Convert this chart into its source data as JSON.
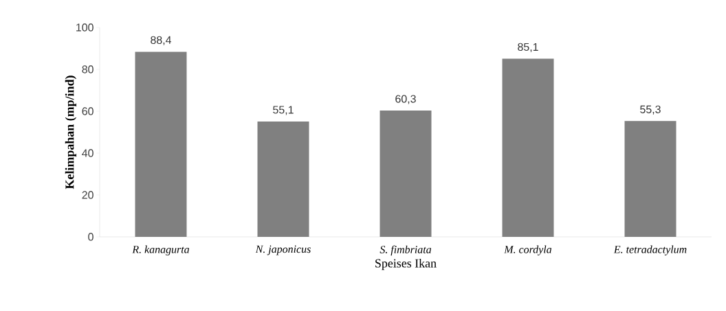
{
  "chart_data": {
    "type": "bar",
    "xlabel": "Speises Ikan",
    "ylabel": "Kelimpahan (mp/ind)",
    "categories": [
      "R. kanagurta",
      "N. japonicus",
      "S. fimbriata",
      "M. cordyla",
      "E. tetradactylum"
    ],
    "values": [
      88.4,
      55.1,
      60.3,
      85.1,
      55.3
    ],
    "value_labels": [
      "88,4",
      "55,1",
      "60,3",
      "85,1",
      "55,3"
    ],
    "color": "#808080",
    "ylim": [
      0,
      100
    ],
    "yticks": [
      0,
      20,
      40,
      60,
      80,
      100
    ]
  }
}
